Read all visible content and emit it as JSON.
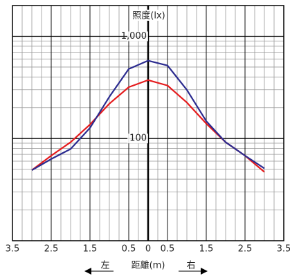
{
  "chart_data": {
    "type": "line",
    "y_label": "照度(lx)",
    "x_label": "距離(m)",
    "left_label": "左",
    "right_label": "右",
    "x": [
      -3,
      -2.5,
      -2,
      -1.5,
      -1,
      -0.5,
      0,
      0.5,
      1,
      1.5,
      2,
      2.5,
      3
    ],
    "series": [
      {
        "color": "#e41a1c",
        "values": [
          49,
          68,
          92,
          137,
          219,
          318,
          373,
          330,
          225,
          140,
          92,
          68,
          47
        ]
      },
      {
        "color": "#2b2b8f",
        "values": [
          49,
          63,
          79,
          127,
          256,
          479,
          578,
          518,
          299,
          148,
          92,
          68,
          51
        ]
      }
    ],
    "xlim": [
      -3.5,
      3.5
    ],
    "xticks": [
      {
        "value": -3.5,
        "label": "3.5"
      },
      {
        "value": -2.5,
        "label": "2.5"
      },
      {
        "value": -1.5,
        "label": "1.5"
      },
      {
        "value": -0.5,
        "label": "0.5"
      },
      0,
      0.5,
      1.5,
      2.5,
      3.5
    ],
    "x_minor_ticks": [
      -3.25,
      -3,
      -2.75,
      -2.5,
      -2.25,
      -2,
      -1.75,
      -1.5,
      -1.25,
      -1,
      -0.75,
      -0.5,
      -0.25,
      0.25,
      0.5,
      0.75,
      1,
      1.25,
      1.5,
      1.75,
      2,
      2.25,
      2.5,
      2.75,
      3,
      3.25
    ],
    "ylim": [
      10,
      2000
    ],
    "log_y": true,
    "yticks": [
      100,
      {
        "value": 1000,
        "label": "1,000"
      }
    ],
    "y_minor_ticks": [
      20,
      30,
      40,
      50,
      60,
      70,
      80,
      90,
      200,
      300,
      400,
      500,
      600,
      700,
      800,
      900
    ],
    "grid": true
  }
}
